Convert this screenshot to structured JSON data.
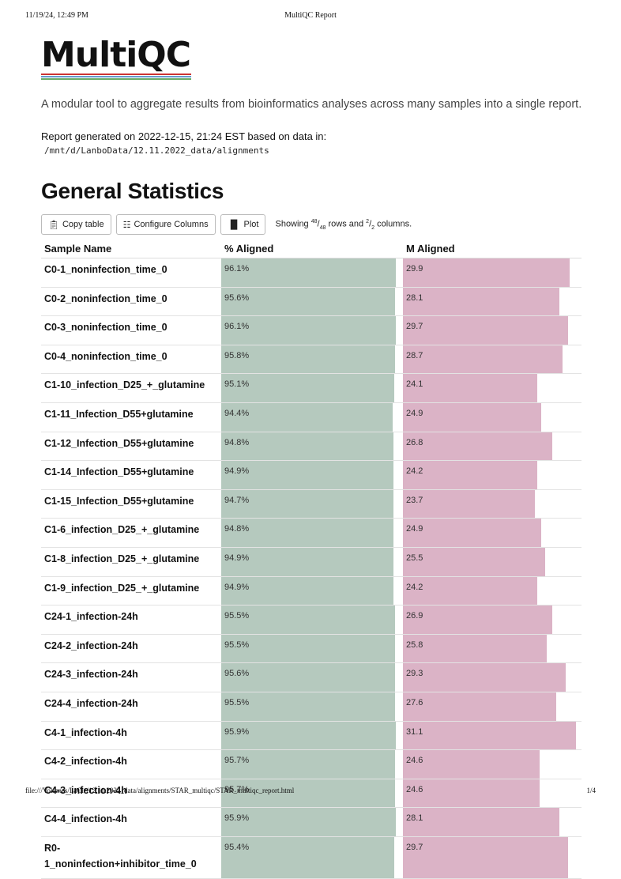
{
  "print_header": {
    "datetime": "11/19/24, 12:49 PM",
    "title": "MultiQC Report"
  },
  "print_footer": {
    "url": "file:///Volumes/LaCie/12.11.2022_data/alignments/STAR_multiqc/STAR_multiqc_report.html",
    "page": "1/4"
  },
  "logo": {
    "text": "MultiQC",
    "line_colors": [
      "#cc3333",
      "#6699cc",
      "#66aa66"
    ]
  },
  "tagline": "A modular tool to aggregate results from bioinformatics analyses across many samples into a single report.",
  "report": {
    "generated": "Report generated on 2022-12-15, 21:24 EST based on data in:",
    "path": "/mnt/d/LanboData/12.11.2022_data/alignments"
  },
  "section_title": "General Statistics",
  "toolbar": {
    "copy_label": "Copy table",
    "configure_label": "Configure Columns",
    "plot_label": "Plot",
    "showing_prefix": "Showing",
    "rows_shown": "48",
    "rows_total": "48",
    "rows_word": "rows and",
    "cols_shown": "2",
    "cols_total": "2",
    "cols_word": "columns."
  },
  "table": {
    "headers": {
      "sample": "Sample Name",
      "pct": "% Aligned",
      "m": "M Aligned"
    },
    "colors": {
      "pct_bar": "#b5c9be",
      "m_bar": "#dbb3c6"
    },
    "rows": [
      {
        "sample": "C0-1_noninfection_time_0",
        "pct": "96.1%",
        "pct_fill": 0.961,
        "m": "29.9",
        "m_fill": 0.932
      },
      {
        "sample": "C0-2_noninfection_time_0",
        "pct": "95.6%",
        "pct_fill": 0.956,
        "m": "28.1",
        "m_fill": 0.876
      },
      {
        "sample": "C0-3_noninfection_time_0",
        "pct": "96.1%",
        "pct_fill": 0.961,
        "m": "29.7",
        "m_fill": 0.926
      },
      {
        "sample": "C0-4_noninfection_time_0",
        "pct": "95.8%",
        "pct_fill": 0.958,
        "m": "28.7",
        "m_fill": 0.895
      },
      {
        "sample": "C1-10_infection_D25_+_glutamine",
        "pct": "95.1%",
        "pct_fill": 0.951,
        "m": "24.1",
        "m_fill": 0.751
      },
      {
        "sample": "C1-11_Infection_D55+glutamine",
        "pct": "94.4%",
        "pct_fill": 0.944,
        "m": "24.9",
        "m_fill": 0.776
      },
      {
        "sample": "C1-12_Infection_D55+glutamine",
        "pct": "94.8%",
        "pct_fill": 0.948,
        "m": "26.8",
        "m_fill": 0.835
      },
      {
        "sample": "C1-14_Infection_D55+glutamine",
        "pct": "94.9%",
        "pct_fill": 0.949,
        "m": "24.2",
        "m_fill": 0.754
      },
      {
        "sample": "C1-15_Infection_D55+glutamine",
        "pct": "94.7%",
        "pct_fill": 0.947,
        "m": "23.7",
        "m_fill": 0.739
      },
      {
        "sample": "C1-6_infection_D25_+_glutamine",
        "pct": "94.8%",
        "pct_fill": 0.948,
        "m": "24.9",
        "m_fill": 0.776
      },
      {
        "sample": "C1-8_infection_D25_+_glutamine",
        "pct": "94.9%",
        "pct_fill": 0.949,
        "m": "25.5",
        "m_fill": 0.795
      },
      {
        "sample": "C1-9_infection_D25_+_glutamine",
        "pct": "94.9%",
        "pct_fill": 0.949,
        "m": "24.2",
        "m_fill": 0.754
      },
      {
        "sample": "C24-1_infection-24h",
        "pct": "95.5%",
        "pct_fill": 0.955,
        "m": "26.9",
        "m_fill": 0.838
      },
      {
        "sample": "C24-2_infection-24h",
        "pct": "95.5%",
        "pct_fill": 0.955,
        "m": "25.8",
        "m_fill": 0.804
      },
      {
        "sample": "C24-3_infection-24h",
        "pct": "95.6%",
        "pct_fill": 0.956,
        "m": "29.3",
        "m_fill": 0.913
      },
      {
        "sample": "C24-4_infection-24h",
        "pct": "95.5%",
        "pct_fill": 0.955,
        "m": "27.6",
        "m_fill": 0.86
      },
      {
        "sample": "C4-1_infection-4h",
        "pct": "95.9%",
        "pct_fill": 0.959,
        "m": "31.1",
        "m_fill": 0.97
      },
      {
        "sample": "C4-2_infection-4h",
        "pct": "95.7%",
        "pct_fill": 0.957,
        "m": "24.6",
        "m_fill": 0.767
      },
      {
        "sample": "C4-3_infection-4h",
        "pct": "95.7%",
        "pct_fill": 0.957,
        "m": "24.6",
        "m_fill": 0.767
      },
      {
        "sample": "C4-4_infection-4h",
        "pct": "95.9%",
        "pct_fill": 0.959,
        "m": "28.1",
        "m_fill": 0.876
      },
      {
        "sample": "R0-1_noninfection+inhibitor_time_0",
        "sample_line1": "R0-",
        "sample_line2": "1_noninfection+inhibitor_time_0",
        "pct": "95.4%",
        "pct_fill": 0.954,
        "m": "29.7",
        "m_fill": 0.926
      }
    ]
  }
}
